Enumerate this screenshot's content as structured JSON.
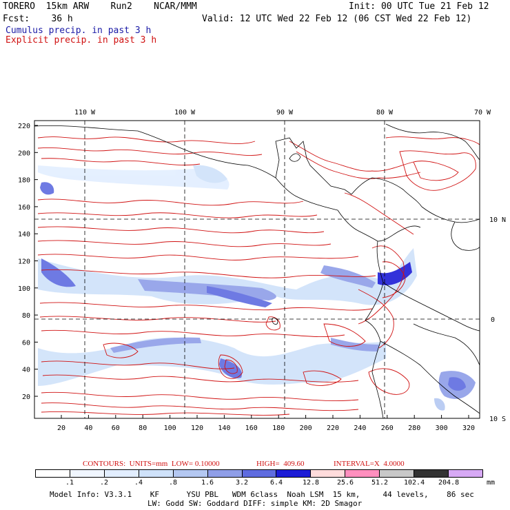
{
  "header": {
    "line1_left": "TORERO  15km ARW    Run2    NCAR/MMM",
    "line1_right": "Init: 00 UTC Tue 21 Feb 12",
    "line2_left": "Fcst:    36 h",
    "line2_right": "Valid: 12 UTC Wed 22 Feb 12 (06 CST Wed 22 Feb 12)",
    "legend_cumulus": "Cumulus precip. in past 3 h",
    "legend_explicit": "Explicit precip. in past 3 h"
  },
  "colors": {
    "cumulus": "#1a1aa6",
    "explicit": "#d01010",
    "coast": "#000000"
  },
  "top_lon_labels": [
    "110 W",
    "100 W",
    "90 W",
    "80 W",
    "70 W"
  ],
  "right_lat_labels": [
    "10 N",
    "0",
    "10 S"
  ],
  "left_y_ticks": [
    "220",
    "200",
    "180",
    "160",
    "140",
    "120",
    "100",
    "80",
    "60",
    "40",
    "20"
  ],
  "bottom_x_ticks": [
    "20",
    "40",
    "60",
    "80",
    "100",
    "120",
    "140",
    "160",
    "180",
    "200",
    "220",
    "240",
    "260",
    "280",
    "300",
    "320"
  ],
  "contour_info": {
    "units": "CONTOURS:  UNITS=mm  LOW= 0.10000",
    "high": "HIGH=  409.60",
    "interval": "INTERVAL=X  4.0000"
  },
  "colorbar": {
    "labels": [
      ".1",
      ".2",
      ".4",
      ".8",
      "1.6",
      "3.2",
      "6.4",
      "12.8",
      "25.6",
      "51.2",
      "102.4",
      "204.8"
    ],
    "unit": "mm",
    "colors": [
      "#ffffff",
      "#f0f6ff",
      "#e2eeff",
      "#cfe2fa",
      "#b4c8f2",
      "#8f9ee8",
      "#5f6ce0",
      "#1c1cd6",
      "#ffdcdc",
      "#ff8fbe",
      "#c8c8c8",
      "#333333",
      "#d7a9f5"
    ]
  },
  "footer": {
    "line1": "Model Info: V3.3.1    KF      YSU PBL   WDM 6class  Noah LSM  15 km,     44 levels,    86 sec",
    "line2": "LW: Godd SW: Goddard DIFF: simple KM: 2D Smagor"
  }
}
